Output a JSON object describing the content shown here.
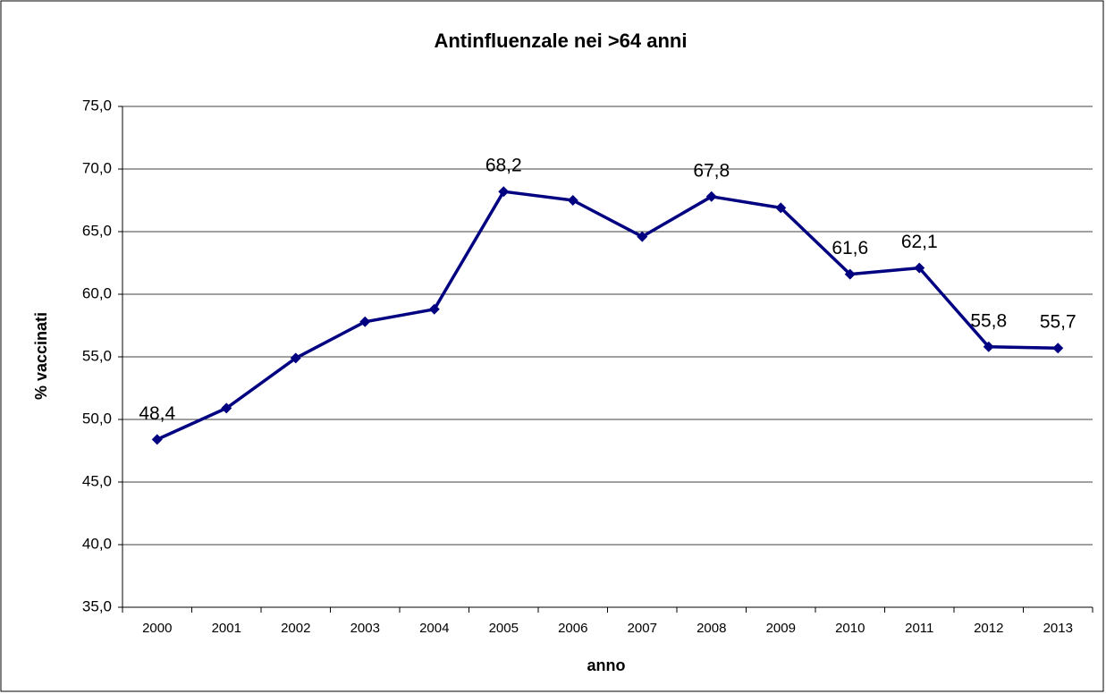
{
  "chart_data": {
    "type": "line",
    "title": "Antinfluenzale nei >64 anni",
    "x_label": "anno",
    "y_label": "% vaccinati",
    "categories": [
      "2000",
      "2001",
      "2002",
      "2003",
      "2004",
      "2005",
      "2006",
      "2007",
      "2008",
      "2009",
      "2010",
      "2011",
      "2012",
      "2013"
    ],
    "series": [
      {
        "name": "% vaccinati",
        "color": "#000080",
        "values": [
          48.4,
          50.9,
          54.9,
          57.8,
          58.8,
          68.2,
          67.5,
          64.6,
          67.8,
          66.9,
          61.6,
          62.1,
          55.8,
          55.7
        ],
        "value_labels": [
          "48,4",
          null,
          null,
          null,
          null,
          "68,2",
          null,
          null,
          "67,8",
          null,
          "61,6",
          "62,1",
          "55,8",
          "55,7"
        ]
      }
    ],
    "ylim": [
      35,
      75
    ],
    "yticks": [
      {
        "value": 35,
        "label": "35,0"
      },
      {
        "value": 40,
        "label": "40,0"
      },
      {
        "value": 45,
        "label": "45,0"
      },
      {
        "value": 50,
        "label": "50,0"
      },
      {
        "value": 55,
        "label": "55,0"
      },
      {
        "value": 60,
        "label": "60,0"
      },
      {
        "value": 65,
        "label": "65,0"
      },
      {
        "value": 70,
        "label": "70,0"
      },
      {
        "value": 75,
        "label": "75,0"
      }
    ],
    "grid": true
  }
}
